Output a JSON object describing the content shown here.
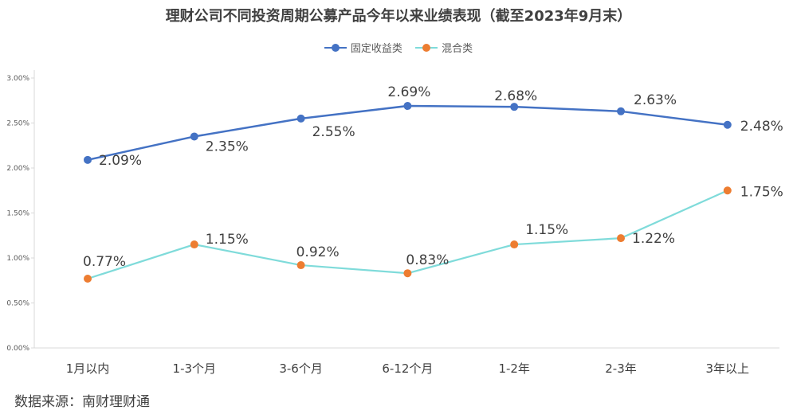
{
  "chart_data": {
    "type": "line",
    "title": "理财公司不同投资周期公募产品今年以来业绩表现（截至2023年9月末）",
    "categories": [
      "1月以内",
      "1-3个月",
      "3-6个月",
      "6-12个月",
      "1-2年",
      "2-3年",
      "3年以上"
    ],
    "series": [
      {
        "name": "固定收益类",
        "color": "#4472C4",
        "values": [
          2.09,
          2.35,
          2.55,
          2.69,
          2.68,
          2.63,
          2.48
        ],
        "labels": [
          "2.09%",
          "2.35%",
          "2.55%",
          "2.69%",
          "2.68%",
          "2.63%",
          "2.48%"
        ]
      },
      {
        "name": "混合类",
        "color": "#7FDBDA",
        "marker_color": "#ED7D31",
        "values": [
          0.77,
          1.15,
          0.92,
          0.83,
          1.15,
          1.22,
          1.75
        ],
        "labels": [
          "0.77%",
          "1.15%",
          "0.92%",
          "0.83%",
          "1.15%",
          "1.22%",
          "1.75%"
        ]
      }
    ],
    "ylim": [
      0,
      3
    ],
    "yticks": [
      0,
      0.5,
      1.0,
      1.5,
      2.0,
      2.5,
      3.0
    ],
    "ytick_labels": [
      "0.00%",
      "0.50%",
      "1.00%",
      "1.50%",
      "2.00%",
      "2.50%",
      "3.00%"
    ],
    "xlabel": "",
    "ylabel": "",
    "grid": false,
    "legend_position": "top"
  },
  "footer": {
    "source": "数据来源：南财理财通"
  }
}
